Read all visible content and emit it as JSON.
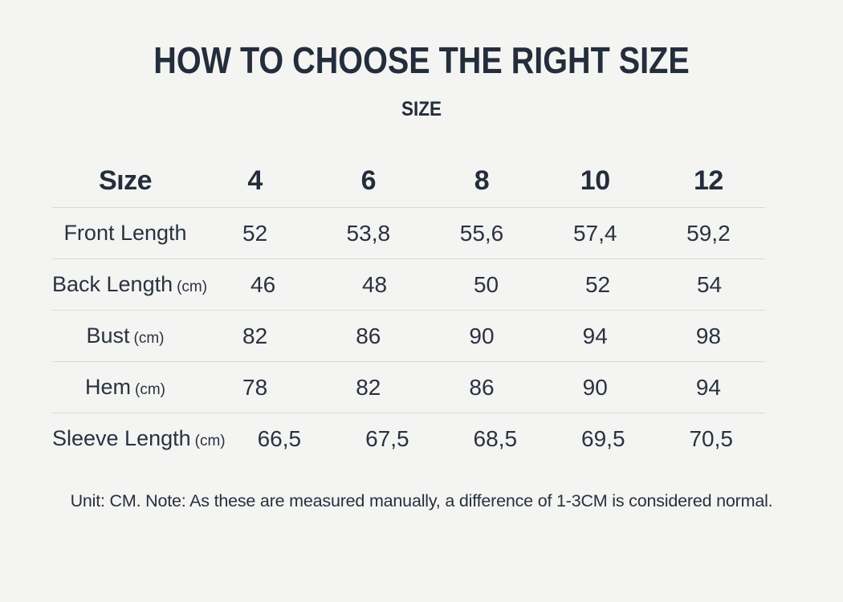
{
  "colors": {
    "background": "#f4f4f2",
    "heading_text": "#242d3b",
    "body_text": "#2a3240",
    "divider": "#d9d9d8"
  },
  "chart_data": {
    "type": "table",
    "title": "HOW TO CHOOSE THE RIGHT SIZE",
    "subtitle": "SIZE",
    "header_label": "Sıze",
    "columns": [
      "4",
      "6",
      "8",
      "10",
      "12"
    ],
    "rows": [
      {
        "label": "Front Length",
        "unit": "",
        "values": [
          "52",
          "53,8",
          "55,6",
          "57,4",
          "59,2"
        ]
      },
      {
        "label": "Back Length",
        "unit": "(cm)",
        "values": [
          "46",
          "48",
          "50",
          "52",
          "54"
        ]
      },
      {
        "label": "Bust",
        "unit": "(cm)",
        "values": [
          "82",
          "86",
          "90",
          "94",
          "98"
        ]
      },
      {
        "label": "Hem",
        "unit": "(cm)",
        "values": [
          "78",
          "82",
          "86",
          "90",
          "94"
        ]
      },
      {
        "label": "Sleeve Length",
        "unit": "(cm)",
        "values": [
          "66,5",
          "67,5",
          "68,5",
          "69,5",
          "70,5"
        ]
      }
    ],
    "note": "Unit: CM. Note: As these are measured manually, a difference of 1-3CM is considered normal."
  }
}
